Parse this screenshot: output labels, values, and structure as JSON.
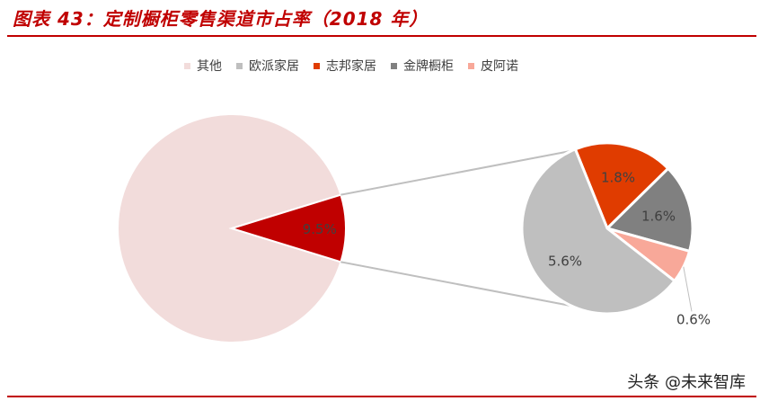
{
  "header": {
    "title": "图表 43：定制橱柜零售渠道市占率（2018 年）"
  },
  "footer": {
    "watermark": "头条 @未来智库"
  },
  "chart_data": {
    "type": "pie",
    "title": "图表 43：定制橱柜零售渠道市占率（2018 年）",
    "legend_position": "top",
    "series": [
      {
        "name": "其他",
        "value": 90.5,
        "color": "#f2dcdb"
      },
      {
        "name": "欧派家居",
        "value": 5.6,
        "color": "#bfbfbf"
      },
      {
        "name": "志邦家居",
        "value": 1.8,
        "color": "#e03c00"
      },
      {
        "name": "金牌橱柜",
        "value": 1.6,
        "color": "#808080"
      },
      {
        "name": "皮阿诺",
        "value": 0.6,
        "color": "#f8a899"
      }
    ],
    "main_pie": {
      "slices": [
        {
          "name": "其他",
          "value": 90.5,
          "label": "",
          "color": "#f2dcdb"
        },
        {
          "name": "",
          "value": 9.5,
          "label": "9.5%",
          "color": "#c00000"
        }
      ]
    },
    "detail_pie": {
      "slices": [
        {
          "name": "志邦家居",
          "value": 1.8,
          "label": "1.8%",
          "color": "#e03c00"
        },
        {
          "name": "金牌橱柜",
          "value": 1.6,
          "label": "1.6%",
          "color": "#808080"
        },
        {
          "name": "皮阿诺",
          "value": 0.6,
          "label": "0.6%",
          "color": "#f8a899"
        },
        {
          "name": "欧派家居",
          "value": 5.6,
          "label": "5.6%",
          "color": "#bfbfbf"
        }
      ]
    }
  }
}
